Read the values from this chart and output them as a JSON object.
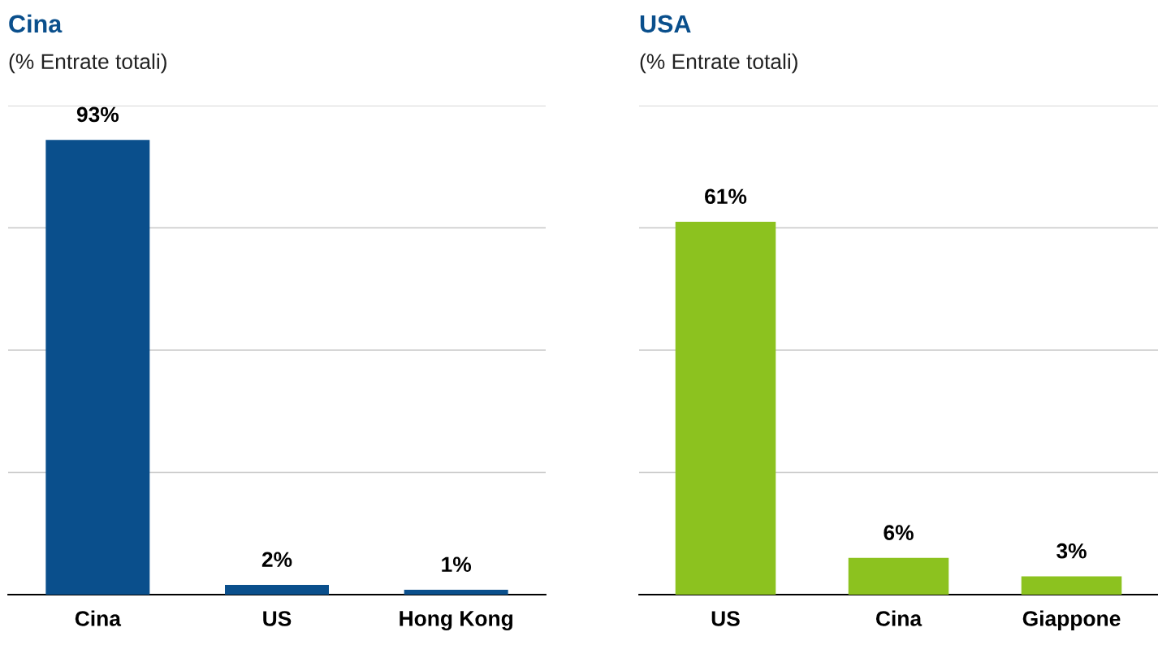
{
  "chart_data": [
    {
      "type": "bar",
      "title": "Cina",
      "subtitle": "(% Entrate totali)",
      "categories": [
        "Cina",
        "US",
        "Hong Kong"
      ],
      "values": [
        93,
        2,
        1
      ],
      "color": "#0a4f8c",
      "value_labels": [
        "93%",
        "2%",
        "1%"
      ],
      "ylim": [
        0,
        100
      ],
      "yticks": [
        {
          "value": 0,
          "label": null
        },
        {
          "value": 25,
          "label": null
        },
        {
          "value": 50,
          "label": null
        },
        {
          "value": 75,
          "label": null
        },
        {
          "value": 100,
          "label": null
        }
      ],
      "grid": "y",
      "tick_labels": "x"
    },
    {
      "type": "bar",
      "title": "USA",
      "subtitle": "(% Entrate totali)",
      "categories": [
        "US",
        "Cina",
        "Giappone"
      ],
      "values": [
        61,
        6,
        3
      ],
      "color": "#8cc21f",
      "value_labels": [
        "61%",
        "6%",
        "3%"
      ],
      "ylim": [
        0,
        80
      ],
      "yticks": [
        {
          "value": 0,
          "label": null
        },
        {
          "value": 20,
          "label": null
        },
        {
          "value": 40,
          "label": null
        },
        {
          "value": 60,
          "label": null
        },
        {
          "value": 80,
          "label": null
        }
      ],
      "grid": "y",
      "tick_labels": "x"
    }
  ]
}
